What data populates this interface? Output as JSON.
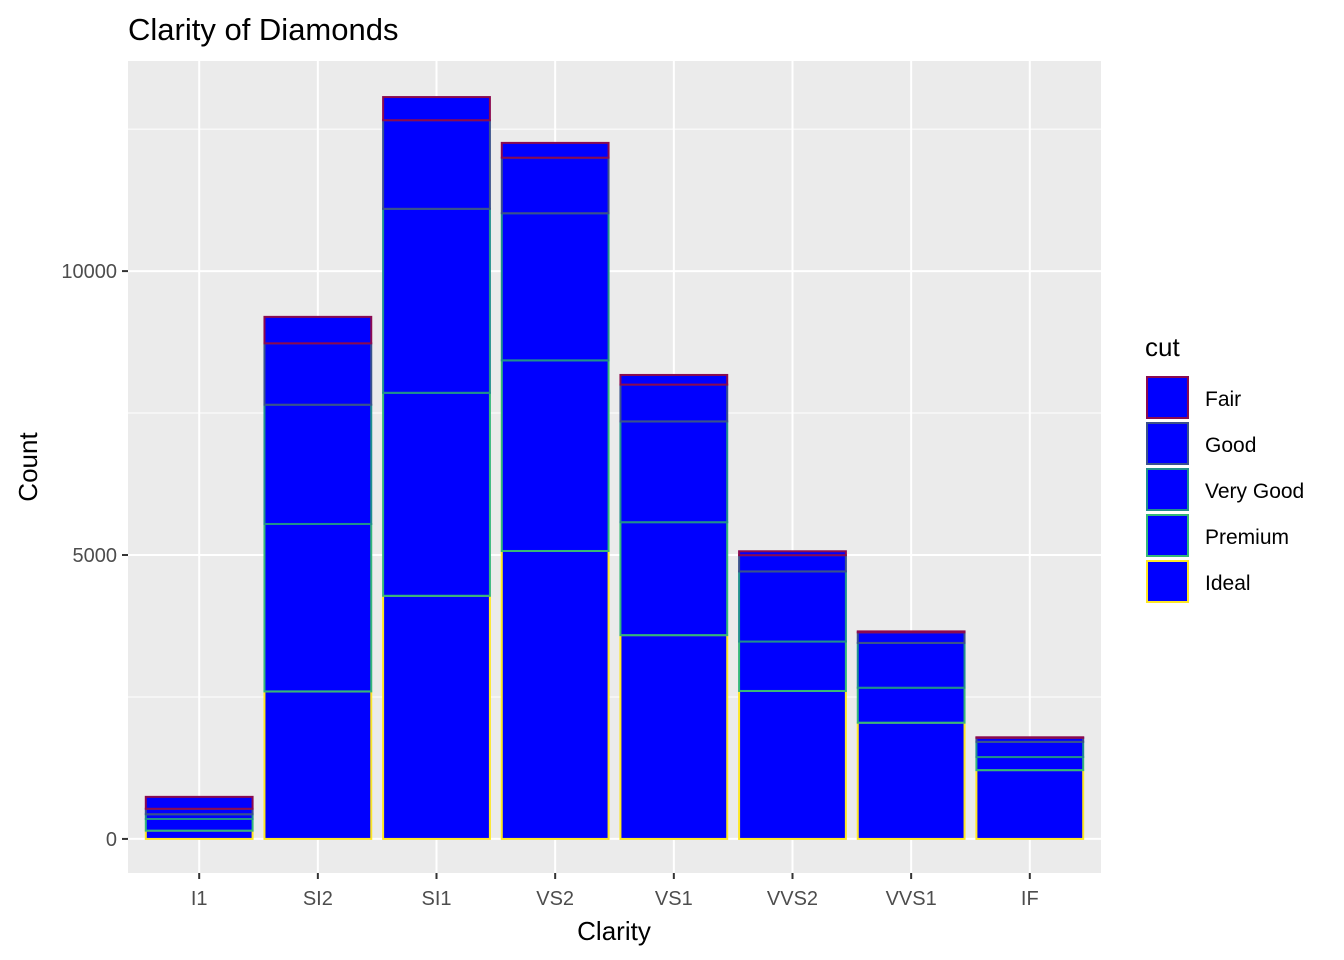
{
  "chart_data": {
    "type": "bar",
    "stacked": true,
    "title": "Clarity of Diamonds",
    "xlabel": "Clarity",
    "ylabel": "Count",
    "categories": [
      "I1",
      "SI2",
      "SI1",
      "VS2",
      "VS1",
      "VVS2",
      "VVS1",
      "IF"
    ],
    "y_ticks": [
      0,
      5000,
      10000
    ],
    "y_tick_labels": [
      "0",
      "5000",
      "10000"
    ],
    "ylim": [
      -600,
      13700
    ],
    "grid": true,
    "legend": {
      "title": "cut",
      "position": "right"
    },
    "fill_color": "#0000ff",
    "series": [
      {
        "name": "Fair",
        "outline": "#8b0a50",
        "values": [
          210,
          466,
          408,
          261,
          170,
          69,
          17,
          9
        ]
      },
      {
        "name": "Good",
        "outline": "#3b528b",
        "values": [
          96,
          1081,
          1560,
          978,
          648,
          286,
          186,
          71
        ]
      },
      {
        "name": "Very Good",
        "outline": "#21908c",
        "values": [
          84,
          2100,
          3240,
          2591,
          1775,
          1235,
          789,
          268
        ]
      },
      {
        "name": "Premium",
        "outline": "#35b779",
        "values": [
          205,
          2949,
          3575,
          3357,
          1989,
          870,
          616,
          230
        ]
      },
      {
        "name": "Ideal",
        "outline": "#fde725",
        "values": [
          146,
          2598,
          4282,
          5071,
          3589,
          2606,
          2047,
          1212
        ]
      }
    ]
  }
}
